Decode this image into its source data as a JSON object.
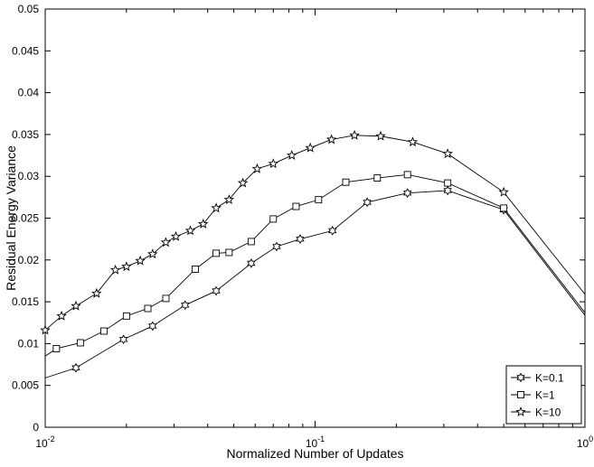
{
  "chart_data": {
    "type": "line",
    "xscale": "log",
    "xlim": [
      0.01,
      1
    ],
    "ylim": [
      0,
      0.05
    ],
    "xlabel": "Normalized Number of Updates",
    "ylabel": "Residual Energy Variance",
    "xticks": [
      {
        "value": 0.01,
        "base": "10",
        "exp": "-2"
      },
      {
        "value": 0.1,
        "base": "10",
        "exp": "-1"
      },
      {
        "value": 1,
        "base": "10",
        "exp": "0"
      }
    ],
    "yticks": [
      0,
      0.005,
      0.01,
      0.015,
      0.02,
      0.025,
      0.03,
      0.035,
      0.04,
      0.045,
      0.05
    ],
    "ytick_labels": [
      "0",
      "0.005",
      "0.01",
      "0.015",
      "0.02",
      "0.025",
      "0.03",
      "0.035",
      "0.04",
      "0.045",
      "0.05"
    ],
    "grid": false,
    "legend_position": "bottom-right",
    "series": [
      {
        "name": "K=0.1",
        "marker": "hexagram",
        "x": [
          0.01,
          0.013,
          0.0195,
          0.025,
          0.033,
          0.043,
          0.058,
          0.072,
          0.088,
          0.116,
          0.156,
          0.22,
          0.31,
          0.5,
          1.0
        ],
        "y": [
          0.0059,
          0.0071,
          0.0105,
          0.0121,
          0.0146,
          0.0163,
          0.0196,
          0.0216,
          0.0225,
          0.0235,
          0.0269,
          0.028,
          0.0283,
          0.026,
          0.0134
        ],
        "marked": [
          false,
          true,
          true,
          true,
          true,
          true,
          true,
          true,
          true,
          true,
          true,
          true,
          true,
          true,
          false
        ]
      },
      {
        "name": "K=1",
        "marker": "square",
        "x": [
          0.01,
          0.011,
          0.0135,
          0.0165,
          0.02,
          0.024,
          0.028,
          0.036,
          0.043,
          0.048,
          0.058,
          0.07,
          0.085,
          0.103,
          0.13,
          0.17,
          0.22,
          0.31,
          0.5,
          1.0
        ],
        "y": [
          0.0085,
          0.0094,
          0.0101,
          0.0115,
          0.0133,
          0.0142,
          0.0154,
          0.0189,
          0.0208,
          0.0209,
          0.0222,
          0.0249,
          0.0264,
          0.0272,
          0.0293,
          0.0298,
          0.0302,
          0.0292,
          0.0262,
          0.0137
        ],
        "marked": [
          false,
          true,
          true,
          true,
          true,
          true,
          true,
          true,
          true,
          true,
          true,
          true,
          true,
          true,
          true,
          true,
          true,
          true,
          true,
          false
        ]
      },
      {
        "name": "K=10",
        "marker": "star",
        "x": [
          0.01,
          0.0115,
          0.013,
          0.0155,
          0.0182,
          0.02,
          0.0225,
          0.025,
          0.028,
          0.0305,
          0.0345,
          0.0385,
          0.043,
          0.048,
          0.054,
          0.061,
          0.07,
          0.082,
          0.096,
          0.115,
          0.14,
          0.175,
          0.23,
          0.31,
          0.5,
          1.0
        ],
        "y": [
          0.0116,
          0.0133,
          0.0145,
          0.016,
          0.0188,
          0.0192,
          0.0199,
          0.0207,
          0.0221,
          0.0228,
          0.0235,
          0.0243,
          0.0262,
          0.0272,
          0.0292,
          0.0309,
          0.0315,
          0.0325,
          0.0334,
          0.0344,
          0.0349,
          0.0348,
          0.0341,
          0.0327,
          0.0281,
          0.0159
        ],
        "marked": [
          true,
          true,
          true,
          true,
          true,
          true,
          true,
          true,
          true,
          true,
          true,
          true,
          true,
          true,
          true,
          true,
          true,
          true,
          true,
          true,
          true,
          true,
          true,
          true,
          true,
          false
        ]
      }
    ]
  }
}
